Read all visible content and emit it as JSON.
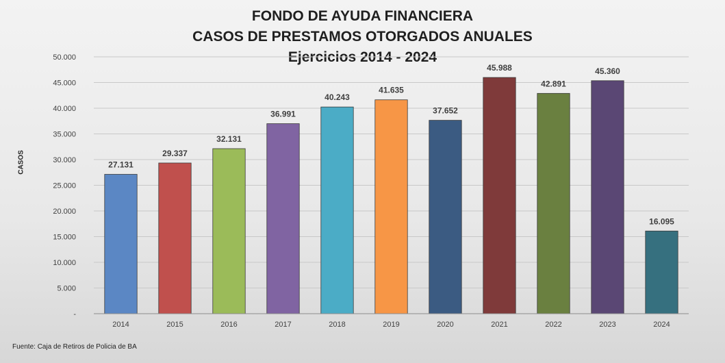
{
  "chart_data": {
    "type": "bar",
    "title_lines": [
      "FONDO DE AYUDA FINANCIERA",
      "CASOS DE PRESTAMOS OTORGADOS ANUALES",
      "Ejercicios 2014 - 2024"
    ],
    "ylabel": "CASOS",
    "xlabel": "",
    "source": "Fuente: Caja de Retiros de Policia de BA",
    "categories": [
      "2014",
      "2015",
      "2016",
      "2017",
      "2018",
      "2019",
      "2020",
      "2021",
      "2022",
      "2023",
      "2024"
    ],
    "values": [
      27131,
      29337,
      32131,
      36991,
      40243,
      41635,
      37652,
      45988,
      42891,
      45360,
      16095
    ],
    "value_labels": [
      "27.131",
      "29.337",
      "32.131",
      "36.991",
      "40.243",
      "41.635",
      "37.652",
      "45.988",
      "42.891",
      "45.360",
      "16.095"
    ],
    "bar_colors": [
      "#5b87c4",
      "#c0504d",
      "#9bbb59",
      "#8064a2",
      "#4bacc6",
      "#f79646",
      "#3b5b82",
      "#7f3a3a",
      "#6a8040",
      "#5a4774",
      "#36707f"
    ],
    "ylim": [
      0,
      50000
    ],
    "y_ticks": [
      0,
      5000,
      10000,
      15000,
      20000,
      25000,
      30000,
      35000,
      40000,
      45000,
      50000
    ],
    "y_tick_labels": [
      "-",
      "5.000",
      "10.000",
      "15.000",
      "20.000",
      "25.000",
      "30.000",
      "35.000",
      "40.000",
      "45.000",
      "50.000"
    ],
    "grid": true,
    "legend": "none"
  }
}
